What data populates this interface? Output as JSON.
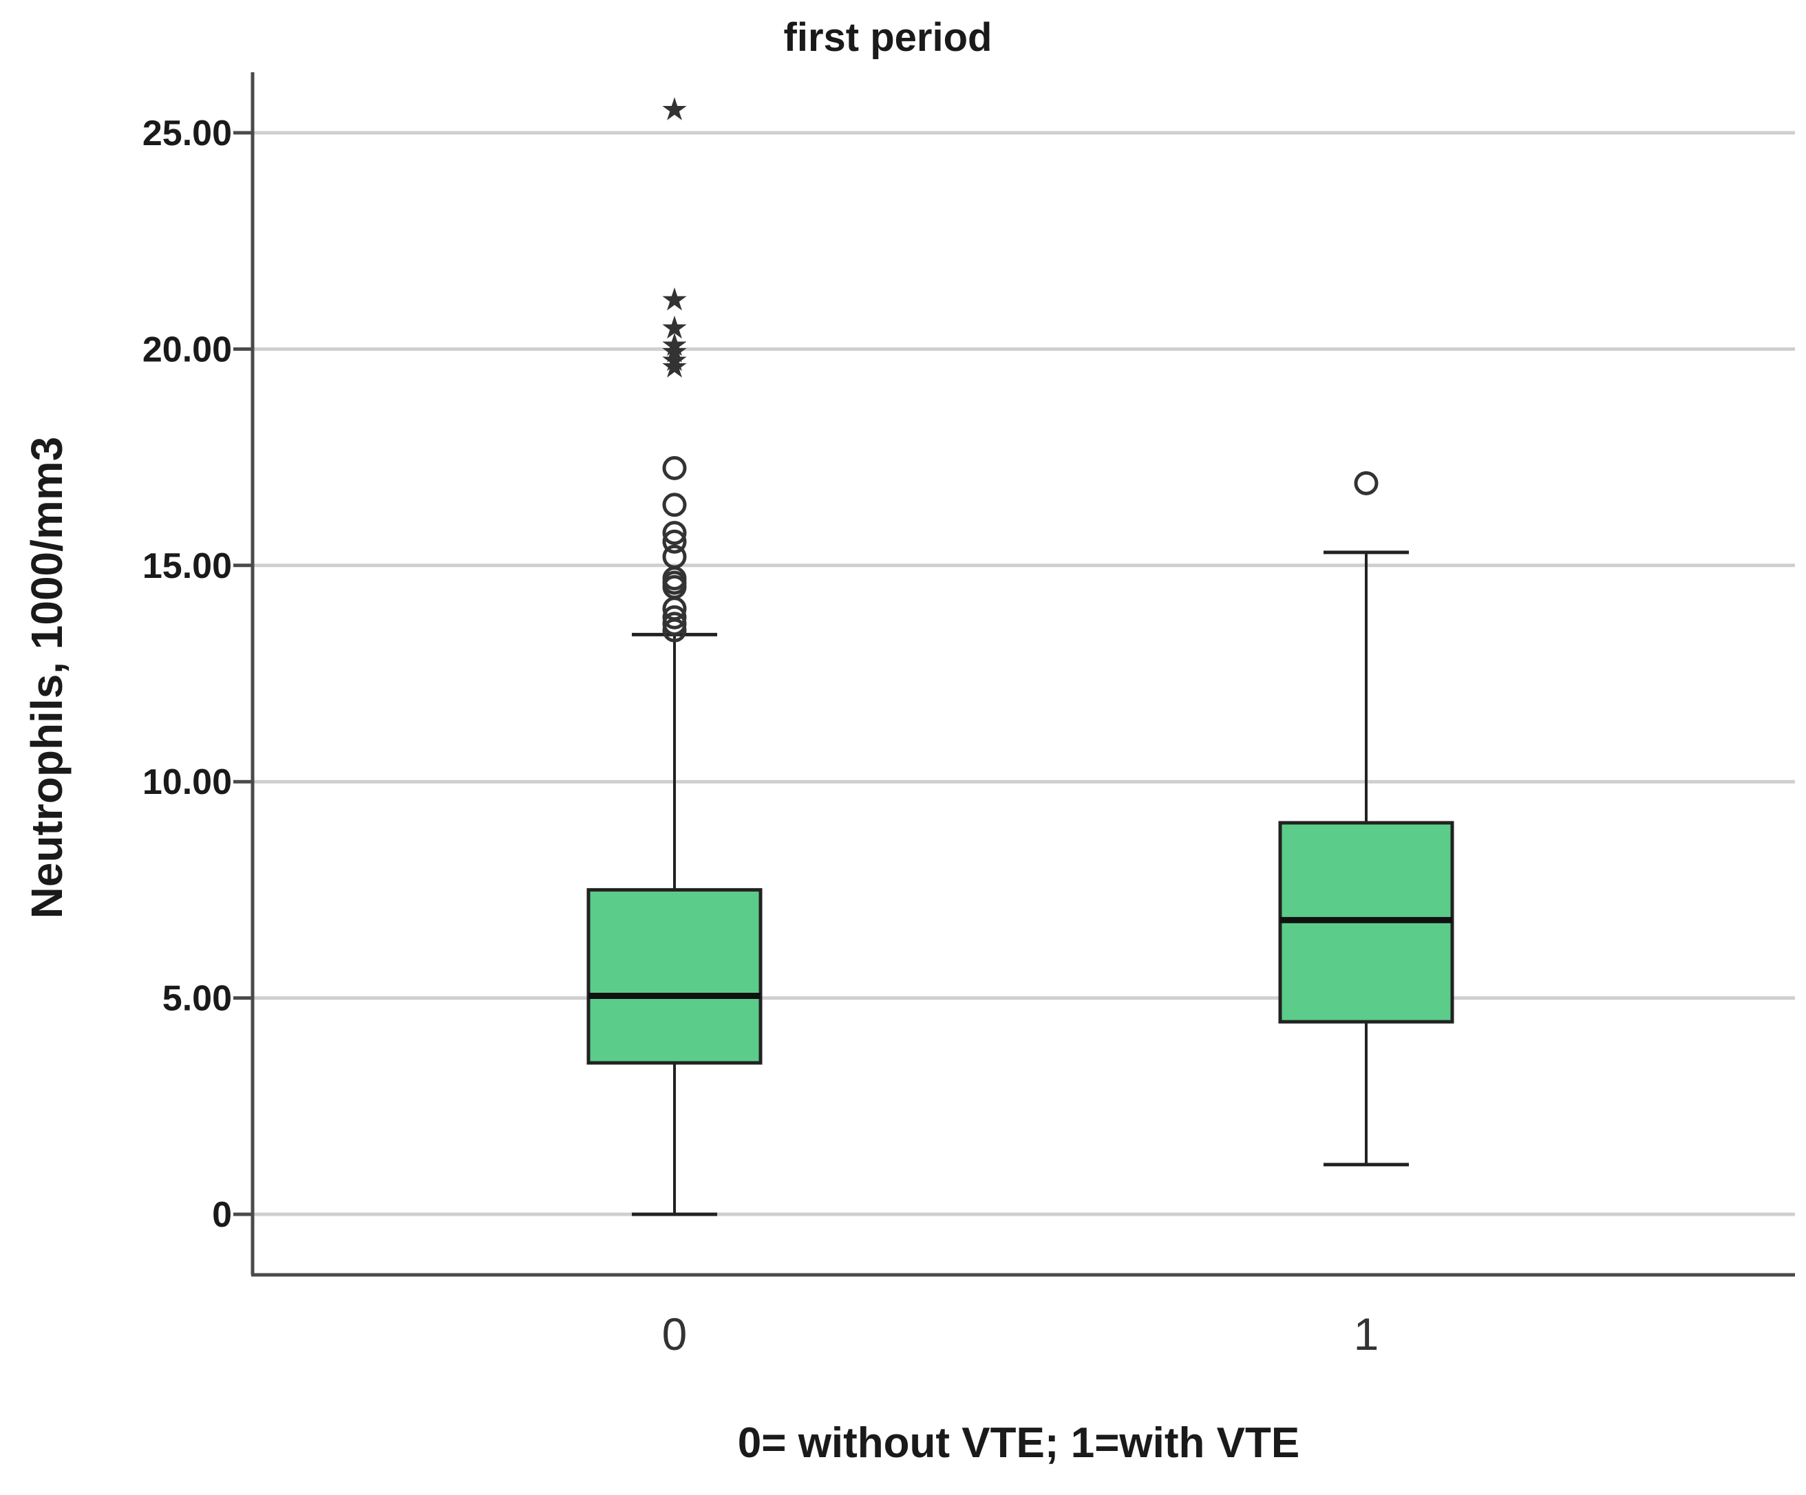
{
  "chart_data": {
    "type": "box",
    "title": "first period",
    "xlabel": "0= without VTE; 1=with VTE",
    "ylabel": "Neutrophils, 1000/mm3",
    "ylim": [
      -1.4,
      27.1
    ],
    "yticks": [
      {
        "value": 0,
        "label": "0"
      },
      {
        "value": 5,
        "label": "5.00"
      },
      {
        "value": 10,
        "label": "10.00"
      },
      {
        "value": 15,
        "label": "15.00"
      },
      {
        "value": 20,
        "label": "20.00"
      },
      {
        "value": 25,
        "label": "25.00"
      }
    ],
    "grid": true,
    "categories": [
      "0",
      "1"
    ],
    "series": [
      {
        "name": "0",
        "whisker_low": 0.0,
        "q1": 3.5,
        "median": 5.05,
        "q3": 7.5,
        "whisker_high": 13.4,
        "outliers_circle": [
          13.5,
          13.65,
          13.8,
          14.0,
          14.5,
          14.6,
          14.7,
          15.2,
          15.55,
          15.75,
          16.4,
          17.25
        ],
        "outliers_star": [
          19.6,
          19.75,
          19.95,
          20.1,
          20.5,
          21.15,
          25.55
        ]
      },
      {
        "name": "1",
        "whisker_low": 1.15,
        "q1": 4.45,
        "median": 6.8,
        "q3": 9.05,
        "whisker_high": 15.3,
        "outliers_circle": [
          16.9
        ],
        "outliers_star": []
      }
    ]
  }
}
